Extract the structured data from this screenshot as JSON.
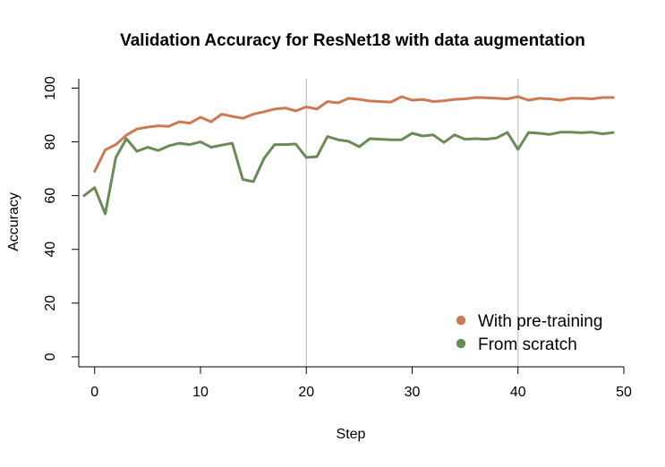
{
  "chart_data": {
    "type": "line",
    "title": "Validation Accuracy for ResNet18 with data augmentation",
    "xlabel": "Step",
    "ylabel": "Accuracy",
    "xlim": [
      -1.5,
      50
    ],
    "ylim": [
      -3.7,
      103.5
    ],
    "xticks": [
      0,
      10,
      20,
      30,
      40,
      50
    ],
    "yticks": [
      0,
      20,
      40,
      60,
      80,
      100
    ],
    "reference_lines_x": [
      20,
      40
    ],
    "legend_position": "bottom-right",
    "grid": false,
    "series": [
      {
        "name": "With pre-training",
        "color": "#cc7a55",
        "x_start": 0,
        "values": [
          69.0,
          77.0,
          79.0,
          82.5,
          84.8,
          85.5,
          86.0,
          85.8,
          87.5,
          87.0,
          89.2,
          87.5,
          90.3,
          89.5,
          88.8,
          90.3,
          91.2,
          92.2,
          92.6,
          91.5,
          93.0,
          92.2,
          95.0,
          94.5,
          96.2,
          95.8,
          95.2,
          95.0,
          94.8,
          96.8,
          95.5,
          95.8,
          95.0,
          95.3,
          95.8,
          96.0,
          96.5,
          96.4,
          96.2,
          96.0,
          96.8,
          95.5,
          96.2,
          96.0,
          95.5,
          96.2,
          96.2,
          96.0,
          96.5,
          96.5
        ]
      },
      {
        "name": "From scratch",
        "color": "#6a8a57",
        "x_start": -1,
        "values": [
          60.0,
          63.0,
          53.2,
          74.2,
          81.2,
          76.5,
          78.0,
          76.8,
          78.5,
          79.5,
          79.0,
          80.0,
          78.0,
          78.8,
          79.5,
          66.0,
          65.2,
          73.8,
          79.0,
          79.0,
          79.2,
          74.2,
          74.5,
          82.0,
          80.8,
          80.2,
          78.2,
          81.2,
          81.0,
          80.8,
          80.8,
          83.2,
          82.2,
          82.6,
          79.8,
          82.6,
          81.0,
          81.2,
          81.0,
          81.5,
          83.5,
          77.2,
          83.5,
          83.2,
          82.8,
          83.6,
          83.6,
          83.4,
          83.6,
          83.0,
          83.5
        ]
      }
    ]
  }
}
